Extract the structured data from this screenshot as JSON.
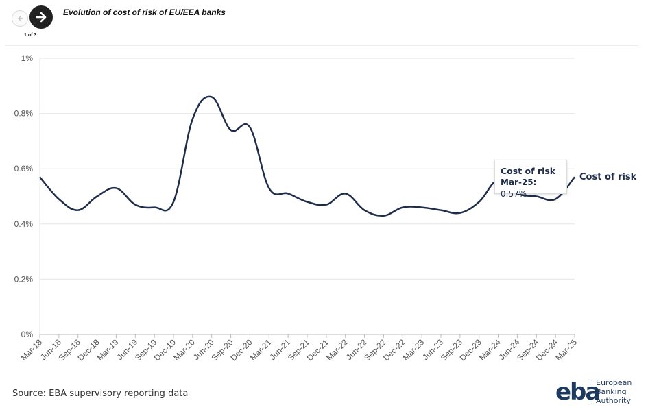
{
  "header": {
    "title": "Evolution of cost of risk of EU/EEA banks",
    "pager": "1 of 3",
    "prev_icon": "arrow-left-icon",
    "next_icon": "arrow-right-icon"
  },
  "chart_data": {
    "type": "line",
    "title": "Evolution of cost of risk of EU/EEA banks",
    "xlabel": "",
    "ylabel": "",
    "ylim": [
      0,
      1
    ],
    "y_tick_values": [
      0,
      0.2,
      0.4,
      0.6,
      0.8,
      1
    ],
    "y_tick_labels": [
      "0%",
      "0.2%",
      "0.4%",
      "0.6%",
      "0.8%",
      "1%"
    ],
    "grid": true,
    "x": [
      "Mar-18",
      "Jun-18",
      "Sep-18",
      "Dec-18",
      "Mar-19",
      "Jun-19",
      "Sep-19",
      "Dec-19",
      "Mar-20",
      "Jun-20",
      "Sep-20",
      "Dec-20",
      "Mar-21",
      "Jun-21",
      "Sep-21",
      "Dec-21",
      "Mar-22",
      "Jun-22",
      "Sep-22",
      "Dec-22",
      "Mar-23",
      "Jun-23",
      "Sep-23",
      "Dec-23",
      "Mar-24",
      "Jun-24",
      "Sep-24",
      "Dec-24",
      "Mar-25"
    ],
    "series": [
      {
        "name": "Cost of risk",
        "color": "#1f2d4a",
        "values": [
          0.57,
          0.49,
          0.45,
          0.5,
          0.53,
          0.47,
          0.46,
          0.48,
          0.78,
          0.86,
          0.74,
          0.75,
          0.53,
          0.51,
          0.48,
          0.47,
          0.51,
          0.45,
          0.43,
          0.46,
          0.46,
          0.45,
          0.44,
          0.48,
          0.56,
          0.51,
          0.5,
          0.49,
          0.57
        ]
      }
    ]
  },
  "tooltip": {
    "title": "Cost of risk",
    "key": "Mar-25:",
    "value": "0.57%"
  },
  "series_label": "Cost of risk",
  "footer": {
    "source": "Source: EBA supervisory reporting data",
    "logo_mark": "eba",
    "logo_lines": [
      "European",
      "Banking",
      "Authority"
    ]
  }
}
